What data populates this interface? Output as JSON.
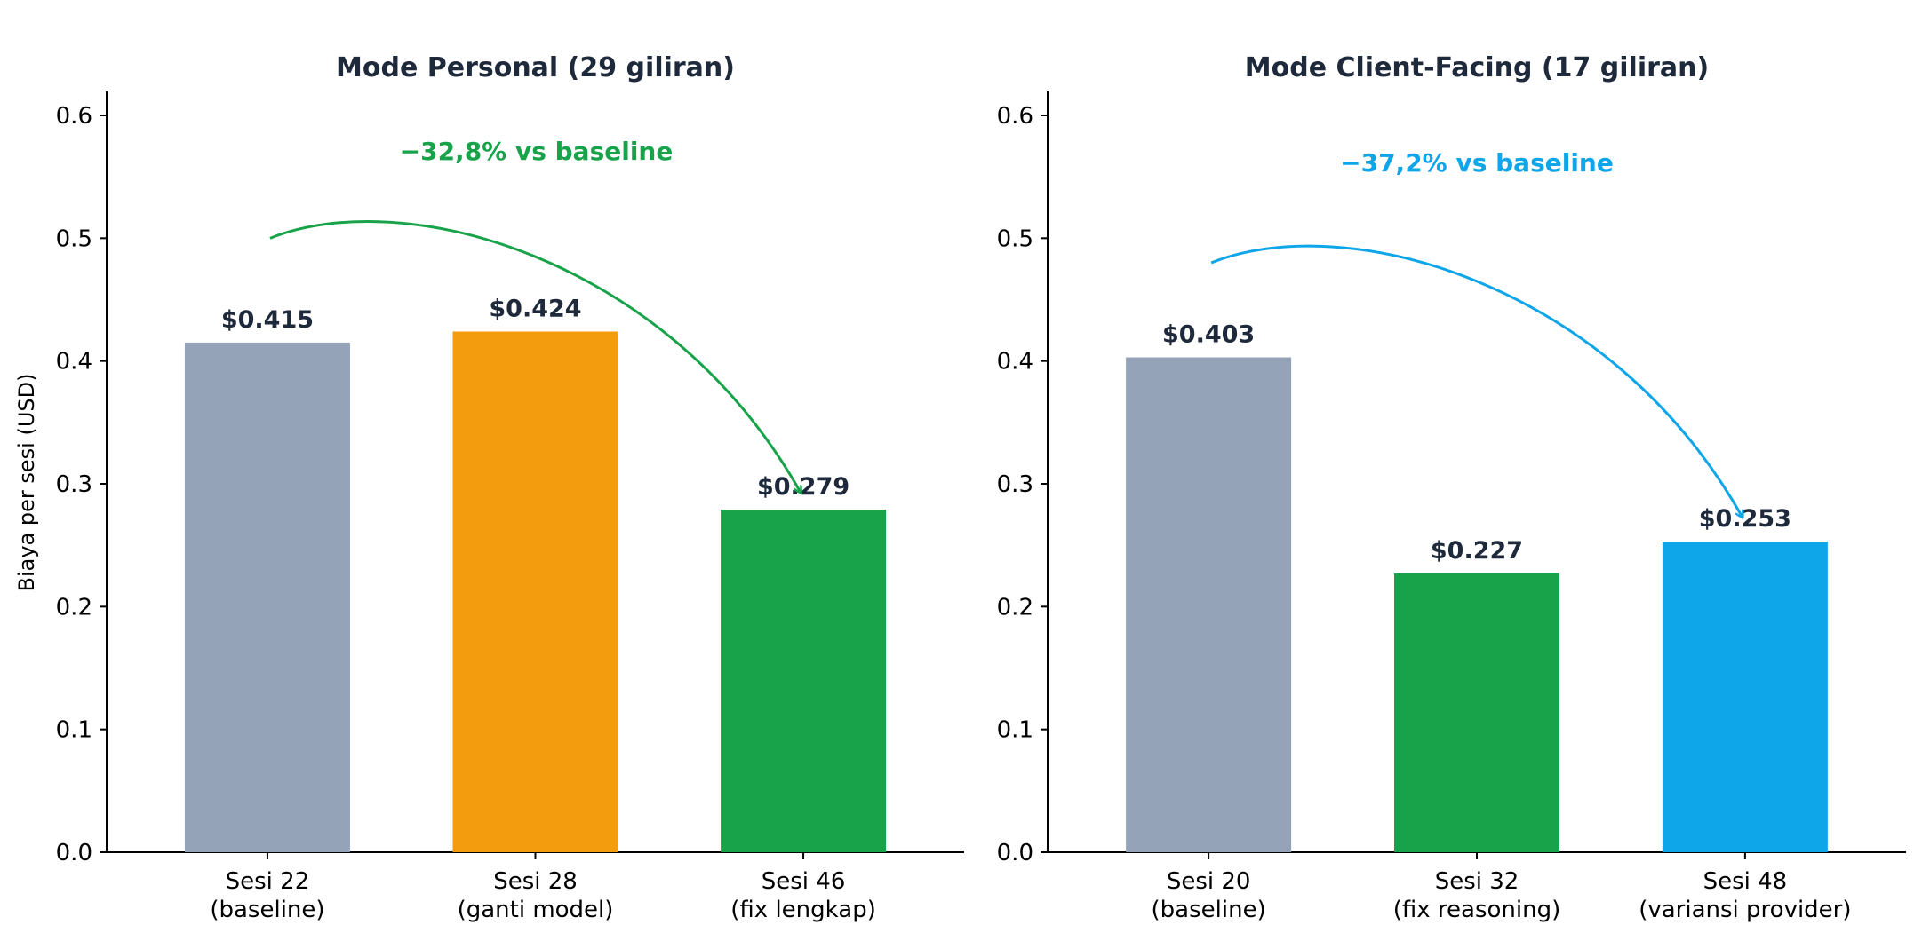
{
  "chart_data": [
    {
      "type": "bar",
      "title": "Mode Personal (29 giliran)",
      "ylabel": "Biaya per sesi (USD)",
      "xlabel": "",
      "ylim": [
        0,
        0.62
      ],
      "yticks": [
        "0.0",
        "0.1",
        "0.2",
        "0.3",
        "0.4",
        "0.5",
        "0.6"
      ],
      "ytick_values": [
        0,
        0.1,
        0.2,
        0.3,
        0.4,
        0.5,
        0.6
      ],
      "categories": [
        [
          "Sesi 22",
          "(baseline)"
        ],
        [
          "Sesi 28",
          "(ganti model)"
        ],
        [
          "Sesi 46",
          "(fix lengkap)"
        ]
      ],
      "values": [
        0.415,
        0.424,
        0.279
      ],
      "data_labels": [
        "$0.415",
        "$0.424",
        "$0.279"
      ],
      "colors": [
        "#94a3b8",
        "#f39c0e",
        "#18a34a"
      ],
      "annotation": {
        "text": "−32,8% vs baseline",
        "color": "#18a34a",
        "arrow_from": {
          "category_index": 0,
          "value": 0.5
        },
        "arrow_to": {
          "category_index": 2,
          "value": 0.3
        }
      },
      "grid": false
    },
    {
      "type": "bar",
      "title": "Mode Client-Facing (17 giliran)",
      "ylabel": "",
      "xlabel": "",
      "ylim": [
        0,
        0.62
      ],
      "yticks": [
        "0.0",
        "0.1",
        "0.2",
        "0.3",
        "0.4",
        "0.5",
        "0.6"
      ],
      "ytick_values": [
        0,
        0.1,
        0.2,
        0.3,
        0.4,
        0.5,
        0.6
      ],
      "categories": [
        [
          "Sesi 20",
          "(baseline)"
        ],
        [
          "Sesi 32",
          "(fix reasoning)"
        ],
        [
          "Sesi 48",
          "(variansi provider)"
        ]
      ],
      "values": [
        0.403,
        0.227,
        0.253
      ],
      "data_labels": [
        "$0.403",
        "$0.227",
        "$0.253"
      ],
      "colors": [
        "#94a3b8",
        "#18a34a",
        "#0ea5e9"
      ],
      "annotation": {
        "text": "−37,2% vs baseline",
        "color": "#0ea5e9",
        "arrow_from": {
          "category_index": 0,
          "value": 0.48
        },
        "arrow_to": {
          "category_index": 2,
          "value": 0.28
        }
      },
      "grid": false
    }
  ]
}
